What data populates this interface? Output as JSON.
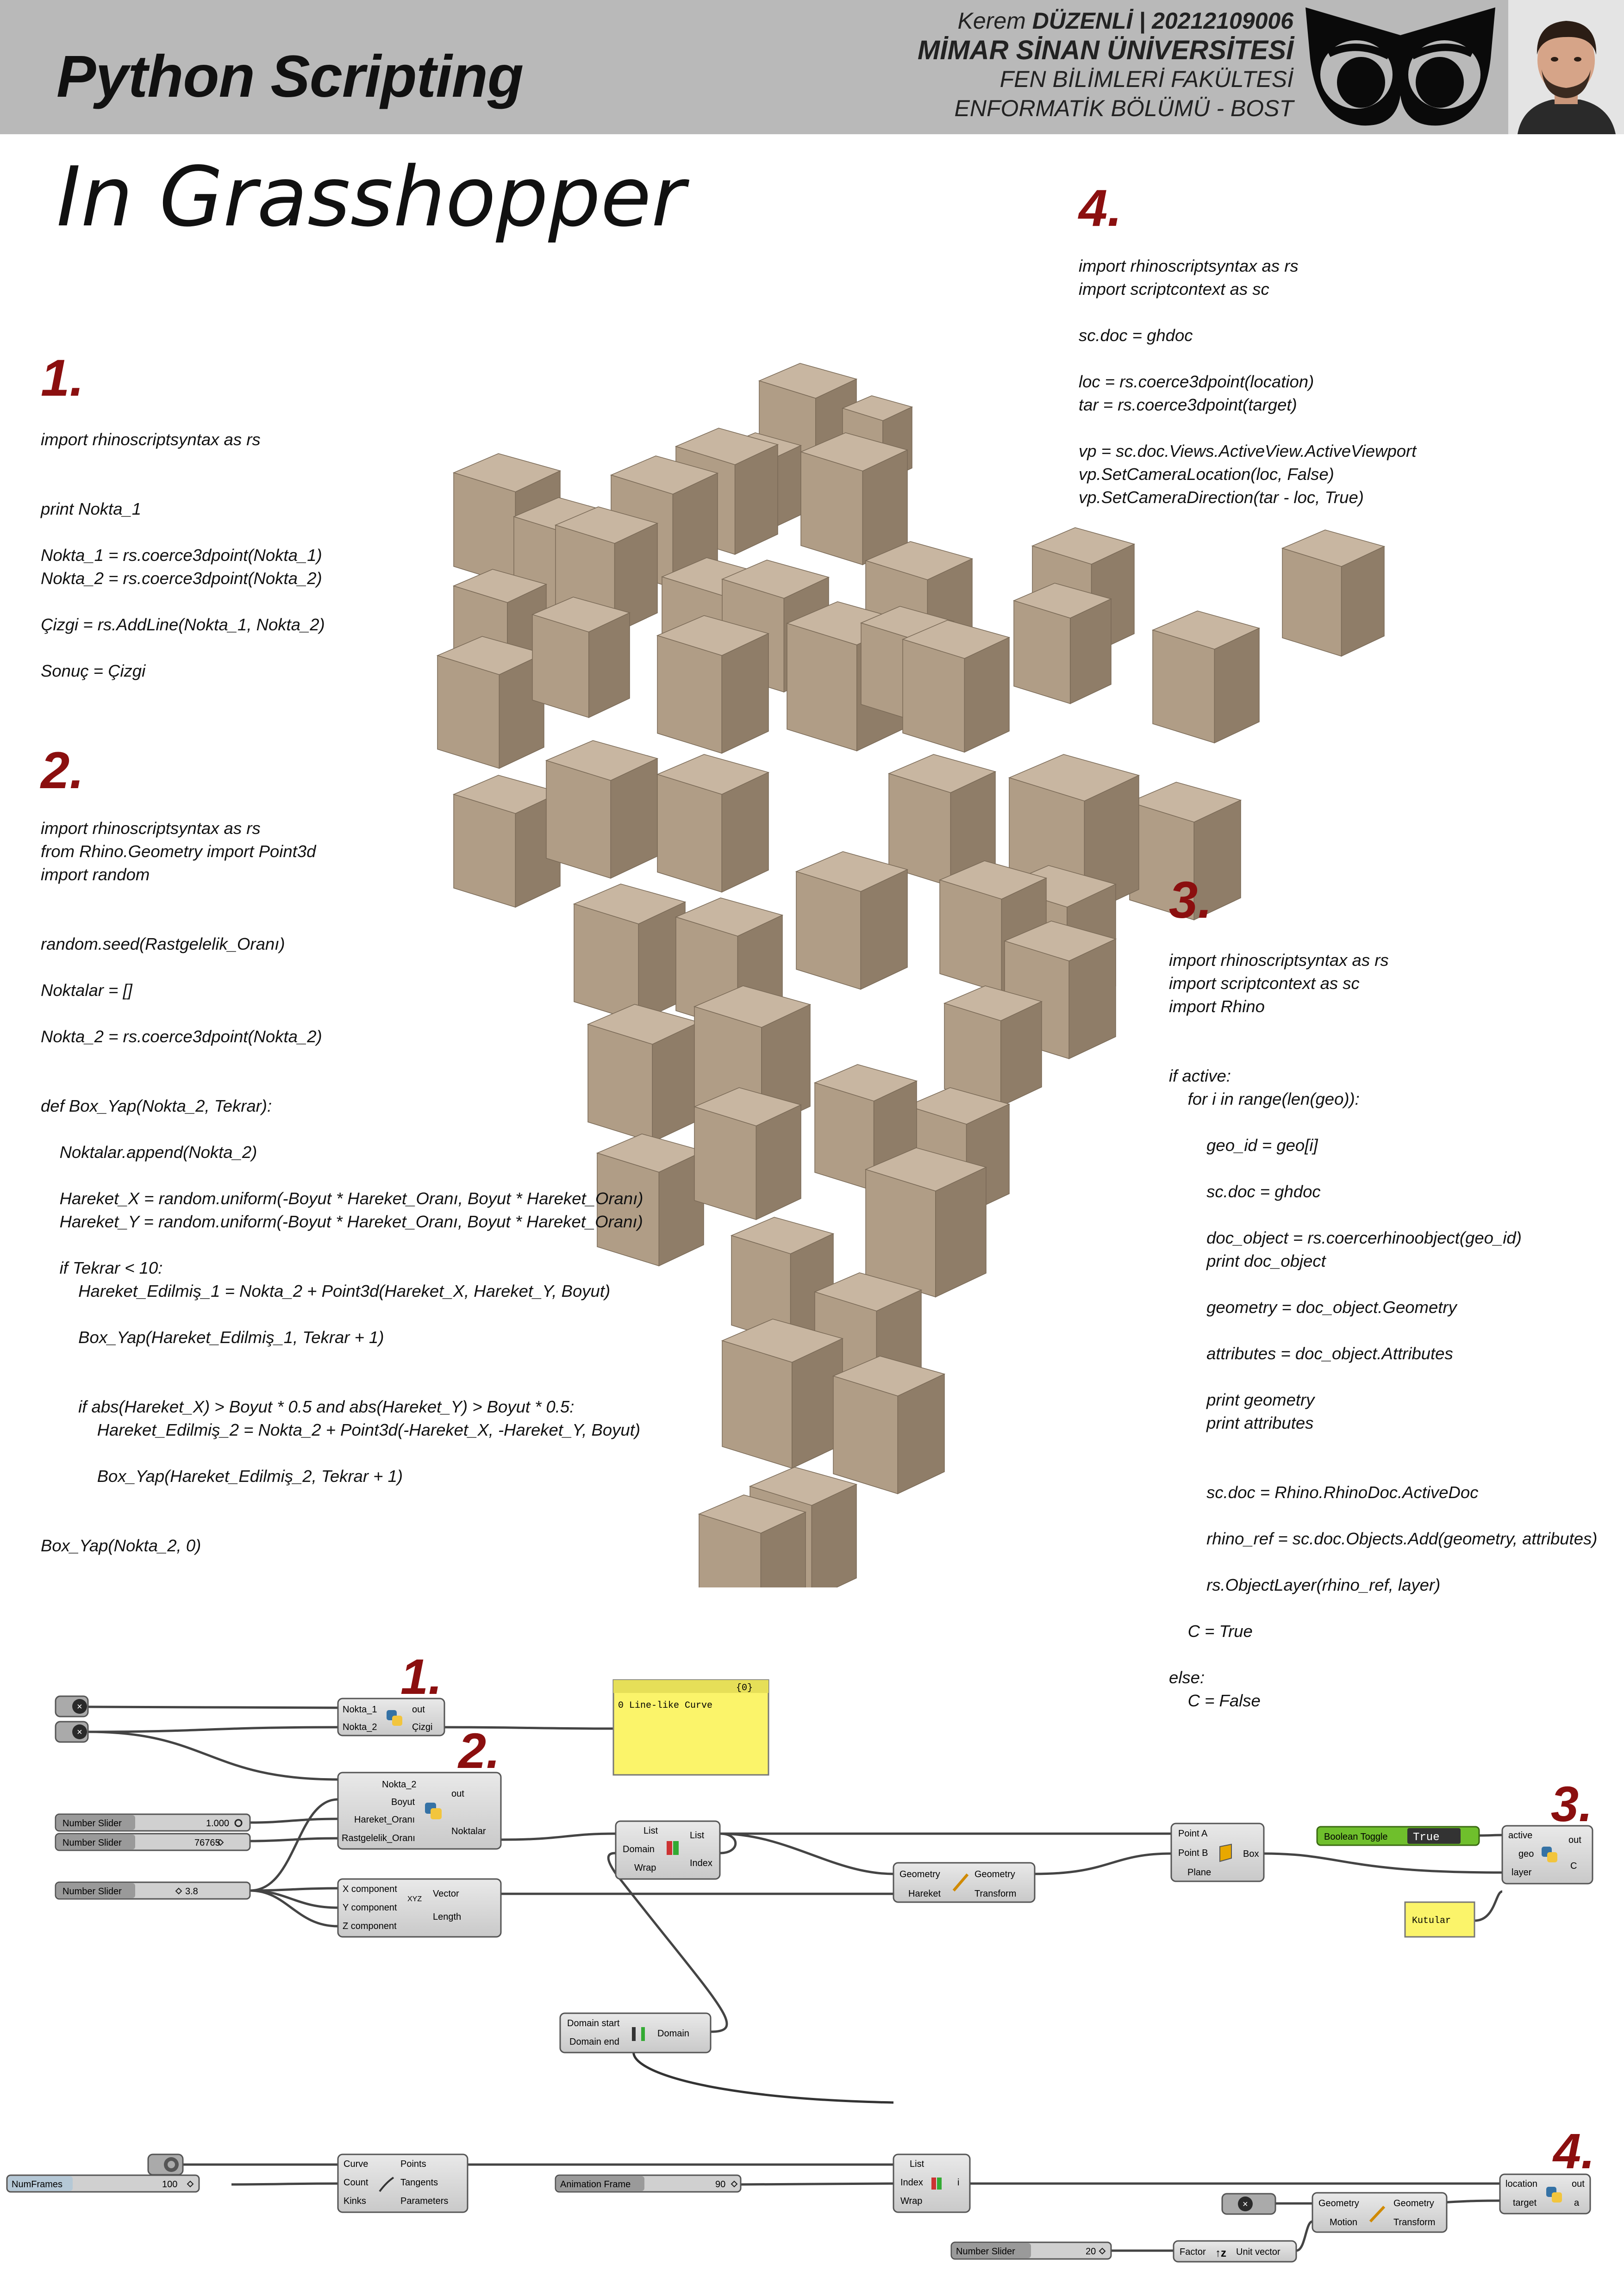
{
  "header": {
    "title": "Python Scripting",
    "subtitle": "In Grasshopper",
    "author_name": "Kerem ",
    "author_surname_id": "DÜZENLİ | 20212109006",
    "university": "MİMAR SİNAN ÜNİVERSİTESİ",
    "faculty": "FEN BİLİMLERİ FAKÜLTESİ",
    "department": "ENFORMATİK BÖLÜMÜ - BOST"
  },
  "sections": [
    {
      "number": "1.",
      "code": "import rhinoscriptsyntax as rs\n\n\nprint Nokta_1\n\nNokta_1 = rs.coerce3dpoint(Nokta_1)\nNokta_2 = rs.coerce3dpoint(Nokta_2)\n\nÇizgi = rs.AddLine(Nokta_1, Nokta_2)\n\nSonuç = Çizgi"
    },
    {
      "number": "2.",
      "code": "import rhinoscriptsyntax as rs\nfrom Rhino.Geometry import Point3d\nimport random\n\n\nrandom.seed(Rastgelelik_Oranı)\n\nNoktalar = []\n\nNokta_2 = rs.coerce3dpoint(Nokta_2)\n\n\ndef Box_Yap(Nokta_2, Tekrar):\n\n    Noktalar.append(Nokta_2)\n\n    Hareket_X = random.uniform(-Boyut * Hareket_Oranı, Boyut * Hareket_Oranı)\n    Hareket_Y = random.uniform(-Boyut * Hareket_Oranı, Boyut * Hareket_Oranı)\n\n    if Tekrar < 10:\n        Hareket_Edilmiş_1 = Nokta_2 + Point3d(Hareket_X, Hareket_Y, Boyut)\n\n        Box_Yap(Hareket_Edilmiş_1, Tekrar + 1)\n\n\n        if abs(Hareket_X) > Boyut * 0.5 and abs(Hareket_Y) > Boyut * 0.5:\n            Hareket_Edilmiş_2 = Nokta_2 + Point3d(-Hareket_X, -Hareket_Y, Boyut)\n\n            Box_Yap(Hareket_Edilmiş_2, Tekrar + 1)\n\n\nBox_Yap(Nokta_2, 0)"
    },
    {
      "number": "3.",
      "code": "import rhinoscriptsyntax as rs\nimport scriptcontext as sc\nimport Rhino\n\n\nif active:\n    for i in range(len(geo)):\n\n        geo_id = geo[i]\n\n        sc.doc = ghdoc\n\n        doc_object = rs.coercerhinoobject(geo_id)\n        print doc_object\n\n        geometry = doc_object.Geometry\n\n        attributes = doc_object.Attributes\n\n        print geometry\n        print attributes\n\n\n        sc.doc = Rhino.RhinoDoc.ActiveDoc\n\n        rhino_ref = sc.doc.Objects.Add(geometry, attributes)\n\n        rs.ObjectLayer(rhino_ref, layer)\n\n    C = True\n\nelse:\n    C = False"
    },
    {
      "number": "4.",
      "code": "import rhinoscriptsyntax as rs\nimport scriptcontext as sc\n\nsc.doc = ghdoc\n\nloc = rs.coerce3dpoint(location)\ntar = rs.coerce3dpoint(target)\n\nvp = sc.doc.Views.ActiveView.ActiveViewport\nvp.SetCameraLocation(loc, False)\nvp.SetCameraDirection(tar - loc, True)"
    }
  ],
  "colors": {
    "header_bg": "#b9b9b9",
    "section_number": "#8b0f0f",
    "cube_top": "#c8b6a1",
    "cube_left": "#b09d86",
    "cube_right": "#8f7d68",
    "gh_component": "#d6d6d6",
    "gh_panel": "#fbf46a",
    "gh_toggle": "#6fbf2c"
  },
  "grasshopper": {
    "labels": {
      "n1": "1.",
      "n2": "2.",
      "n3": "3.",
      "n4": "4.",
      "c1_in1": "Nokta_1",
      "c1_in2": "Nokta_2",
      "c1_out1": "out",
      "c1_out2": "Çizgi",
      "panel1_header": "{0}",
      "panel1_text": "0 Line-like Curve",
      "c2_in1": "Nokta_2",
      "c2_in2": "Boyut",
      "c2_in3": "Hareket_Oranı",
      "c2_in4": "Rastgelelik_Oranı",
      "c2_out1": "out",
      "c2_out2": "Noktalar",
      "slider_label": "Number Slider",
      "slider1_value": "1.000",
      "slider2_value": "76765",
      "slider3_value": "3.8",
      "vec_in1": "X component",
      "vec_in2": "Y component",
      "vec_in3": "Z component",
      "vec_icon": "XYZ",
      "vec_out1": "Vector",
      "vec_out2": "Length",
      "li_in1": "List",
      "li_in2": "Domain",
      "li_in3": "Wrap",
      "li_out1": "List",
      "li_out2": "Index",
      "mv_in1": "Geometry",
      "mv_in2": "Hareket",
      "mv_out1": "Geometry",
      "mv_out2": "Transform",
      "box_in1": "Point A",
      "box_in2": "Point B",
      "box_in3": "Plane",
      "box_out": "Box",
      "toggle_label": "Boolean Toggle",
      "toggle_value": "True",
      "c3_in1": "active",
      "c3_in2": "geo",
      "c3_in3": "layer",
      "c3_out1": "out",
      "c3_out2": "C",
      "panel2_text": "Kutular",
      "dom_in1": "Domain start",
      "dom_in2": "Domain end",
      "dom_out": "Domain",
      "numframes_label": "NumFrames",
      "numframes_value": "100",
      "div_in1": "Curve",
      "div_in2": "Count",
      "div_in3": "Kinks",
      "div_out1": "Points",
      "div_out2": "Tangents",
      "div_out3": "Parameters",
      "anim_label": "Animation Frame",
      "anim_value": "90",
      "li2_in1": "List",
      "li2_in2": "Index",
      "li2_in3": "Wrap",
      "li2_out": "i",
      "c4_in1": "location",
      "c4_in2": "target",
      "c4_out1": "out",
      "c4_out2": "a",
      "mv2_in1": "Geometry",
      "mv2_in2": "Motion",
      "mv2_out1": "Geometry",
      "mv2_out2": "Transform",
      "slider4_value": "20",
      "uv_in": "Factor",
      "uv_out": "Unit vector"
    }
  }
}
